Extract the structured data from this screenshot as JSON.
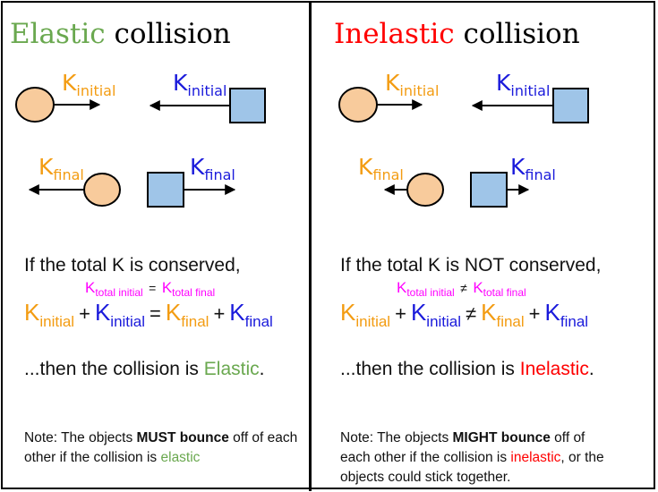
{
  "colors": {
    "ball": "#f8cb9c",
    "box": "#9fc5e8",
    "orange": "#f39c12",
    "blue": "#1a1adb",
    "magenta": "#ff00ff",
    "green": "#6aa84f",
    "red": "#ff0000"
  },
  "left": {
    "title_keyword": "Elastic",
    "title_rest": "collision",
    "condition": "If the total K is conserved,",
    "relation": "=",
    "result_prefix": "...then the collision is ",
    "result_keyword": "Elastic",
    "result_suffix": ".",
    "note_prefix": "Note: The objects ",
    "note_bold": "MUST bounce",
    "note_middle": " off of each other if the collision is ",
    "note_keyword": "elastic",
    "note_suffix": ""
  },
  "right": {
    "title_keyword": "Inelastic",
    "title_rest": "collision",
    "condition": "If the total K is NOT conserved,",
    "relation": "≠",
    "result_prefix": "...then the collision is ",
    "result_keyword": "Inelastic",
    "result_suffix": ".",
    "note_prefix": "Note: The objects ",
    "note_bold": "MIGHT bounce",
    "note_middle": " off of each other if the collision is ",
    "note_keyword": "inelastic",
    "note_suffix": ", or the objects could stick together."
  },
  "labels": {
    "k": "K",
    "initial": "initial",
    "final": "final",
    "total_initial": "total initial",
    "total_final": "total final",
    "plus": "+"
  }
}
